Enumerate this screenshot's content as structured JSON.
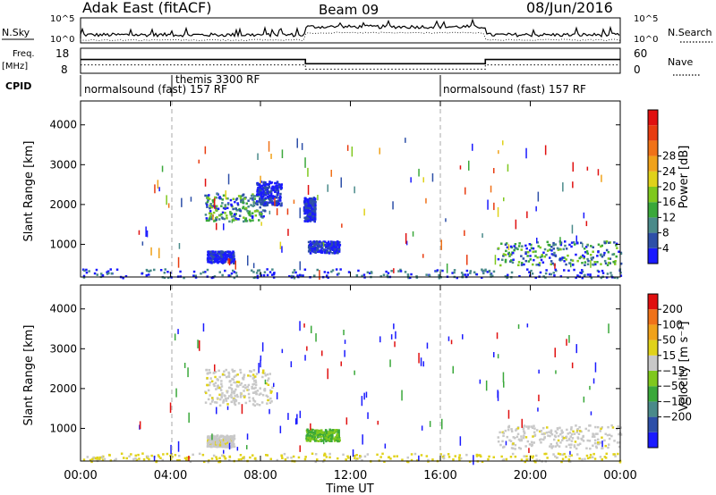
{
  "header": {
    "station": "Adak East (fitACF)",
    "beam": "Beam 09",
    "date": "08/Jun/2016"
  },
  "noise_panel": {
    "left_label": "N.Sky",
    "right_label": "N.Search",
    "left_ticks": [
      "10^5",
      "10^0"
    ],
    "right_ticks": [
      "10^5",
      "10^0"
    ]
  },
  "freq_panel": {
    "left_label_line1": "Freq.",
    "left_label_line2": "[MHz]",
    "right_label": "Nave",
    "left_ticks": [
      "18",
      "8"
    ],
    "right_ticks": [
      "60",
      "0"
    ],
    "freq_steps": [
      {
        "from": 0,
        "to": 10,
        "value": 13.5
      },
      {
        "from": 10,
        "to": 18,
        "value": 11.8
      },
      {
        "from": 18,
        "to": 24,
        "value": 13.5
      }
    ]
  },
  "cpid": {
    "label": "CPID",
    "segments": [
      {
        "from": 0,
        "text": "normalsound (fast) 157 RF"
      },
      {
        "from": 4,
        "text": "themis 3300 RF"
      },
      {
        "from": 16,
        "text": "normalsound (fast) 157 RF"
      }
    ]
  },
  "chart_data": [
    {
      "type": "heatmap",
      "title": "Power",
      "ylabel": "Slant Range [km]",
      "xlabel": "Time UT",
      "xlim": [
        0,
        24
      ],
      "ylim": [
        180,
        4600
      ],
      "yticks": [
        "1000",
        "2000",
        "3000",
        "4000"
      ],
      "xticks": [
        "00:00",
        "04:00",
        "08:00",
        "12:00",
        "16:00",
        "20:00",
        "00:00"
      ],
      "dashed_lines_hours": [
        4,
        16
      ],
      "colorbar": {
        "label": "Power [dB]",
        "ticks": [
          "4",
          "8",
          "12",
          "16",
          "20",
          "24",
          "28"
        ],
        "colors": [
          "#1a1aff",
          "#2d4fa8",
          "#4a8a8a",
          "#3aa83a",
          "#7fc81e",
          "#e0d21a",
          "#f0a21a",
          "#f07218",
          "#e83c10",
          "#e01010"
        ]
      },
      "regions": [
        {
          "t": [
            5.5,
            8.2
          ],
          "r": [
            1600,
            2300
          ],
          "level": "mixed"
        },
        {
          "t": [
            7.8,
            8.9
          ],
          "r": [
            2000,
            2600
          ],
          "level": "low"
        },
        {
          "t": [
            5.6,
            6.8
          ],
          "r": [
            550,
            850
          ],
          "level": "low"
        },
        {
          "t": [
            9.9,
            10.4
          ],
          "r": [
            1600,
            2200
          ],
          "level": "low"
        },
        {
          "t": [
            10.1,
            11.5
          ],
          "r": [
            800,
            1100
          ],
          "level": "low"
        },
        {
          "t": [
            18.5,
            24
          ],
          "r": [
            500,
            1100
          ],
          "level": "mixed"
        },
        {
          "t": [
            0,
            24
          ],
          "r": [
            180,
            400
          ],
          "level": "sparse"
        }
      ]
    },
    {
      "type": "heatmap",
      "title": "Velocity",
      "ylabel": "Slant Range [km]",
      "xlabel": "Time UT",
      "xlim": [
        0,
        24
      ],
      "ylim": [
        180,
        4600
      ],
      "yticks": [
        "1000",
        "2000",
        "3000",
        "4000"
      ],
      "xticks": [
        "00:00",
        "04:00",
        "08:00",
        "12:00",
        "16:00",
        "20:00",
        "00:00"
      ],
      "dashed_lines_hours": [
        4,
        16
      ],
      "colorbar": {
        "label": "Velocity [m s⁻¹]",
        "ticks": [
          "200",
          "100",
          "50",
          "15",
          "−15",
          "−50",
          "−100",
          "−200"
        ],
        "colors": [
          "#1a1aff",
          "#2d4fa8",
          "#4a8a8a",
          "#3aa83a",
          "#7fc81e",
          "#c8c8c8",
          "#e0d21a",
          "#f0a21a",
          "#f07218",
          "#e01010"
        ]
      },
      "regions": [
        {
          "t": [
            5.5,
            8.5
          ],
          "r": [
            1600,
            2500
          ],
          "level": "gray"
        },
        {
          "t": [
            5.6,
            6.8
          ],
          "r": [
            550,
            850
          ],
          "level": "gray"
        },
        {
          "t": [
            10.0,
            11.5
          ],
          "r": [
            700,
            1000
          ],
          "level": "green"
        },
        {
          "t": [
            18.5,
            24
          ],
          "r": [
            500,
            1100
          ],
          "level": "gray"
        },
        {
          "t": [
            0,
            24
          ],
          "r": [
            180,
            400
          ],
          "level": "yellow"
        }
      ]
    }
  ],
  "axis": {
    "x_title": "Time UT"
  }
}
